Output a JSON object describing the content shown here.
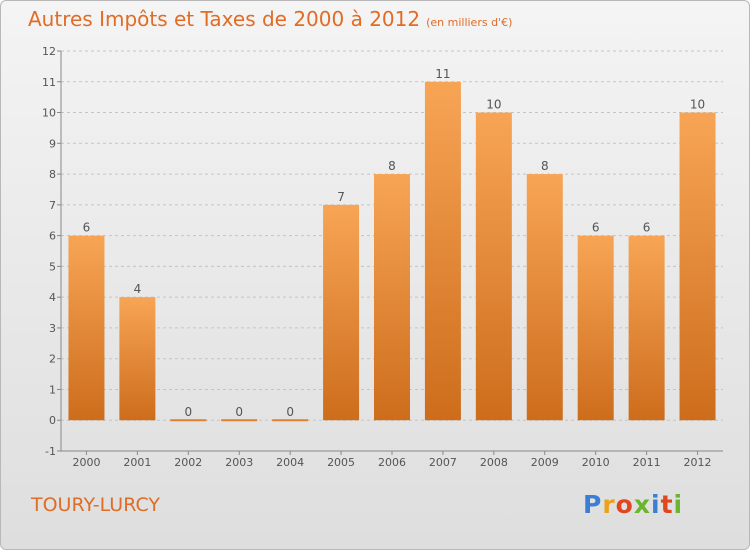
{
  "header": {
    "title": "Autres Impôts et Taxes de 2000 à 2012",
    "unit": "(en milliers d'€)"
  },
  "footer": {
    "city": "TOURY-LURCY",
    "logo_letters": [
      "P",
      "r",
      "o",
      "x",
      "i",
      "t",
      "i"
    ],
    "logo_colors": [
      "#3a7fd5",
      "#e8a21c",
      "#e0461f",
      "#6ab52b",
      "#3a7fd5",
      "#e0461f",
      "#6ab52b"
    ]
  },
  "chart_data": {
    "type": "bar",
    "title": "Autres Impôts et Taxes de 2000 à 2012",
    "subtitle": "(en milliers d'€)",
    "categories": [
      "2000",
      "2001",
      "2002",
      "2003",
      "2004",
      "2005",
      "2006",
      "2007",
      "2008",
      "2009",
      "2010",
      "2011",
      "2012"
    ],
    "values": [
      6,
      4,
      0,
      0,
      0,
      7,
      8,
      11,
      10,
      8,
      6,
      6,
      10
    ],
    "data_labels": [
      "6",
      "4",
      "0",
      "0",
      "0",
      "7",
      "8",
      "11",
      "10",
      "8",
      "6",
      "6",
      "10"
    ],
    "y_ticks": [
      "-1",
      "0",
      "1",
      "2",
      "3",
      "4",
      "5",
      "6",
      "7",
      "8",
      "9",
      "10",
      "11",
      "12"
    ],
    "ylim": [
      -1,
      12
    ],
    "grid": "horizontal dashed",
    "bar_color": "#f0923c"
  }
}
